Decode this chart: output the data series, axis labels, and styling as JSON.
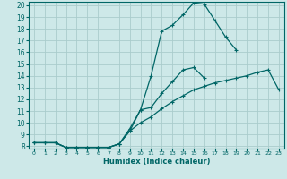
{
  "xlabel": "Humidex (Indice chaleur)",
  "background_color": "#cde8e8",
  "grid_color": "#aacccc",
  "line_color": "#006666",
  "xlim": [
    -0.5,
    23.5
  ],
  "ylim": [
    7.8,
    20.3
  ],
  "xticks": [
    0,
    1,
    2,
    3,
    4,
    5,
    6,
    7,
    8,
    9,
    10,
    11,
    12,
    13,
    14,
    15,
    16,
    17,
    18,
    19,
    20,
    21,
    22,
    23
  ],
  "yticks": [
    8,
    9,
    10,
    11,
    12,
    13,
    14,
    15,
    16,
    17,
    18,
    19,
    20
  ],
  "line1_y": [
    8.3,
    8.3,
    8.3,
    7.9,
    7.9,
    7.9,
    7.9,
    7.9,
    8.2,
    9.3,
    11.1,
    14.0,
    17.8,
    18.3,
    19.2,
    20.2,
    20.1,
    18.7,
    17.3,
    16.2,
    null,
    null,
    null,
    null
  ],
  "line2_y": [
    8.3,
    8.3,
    8.3,
    7.9,
    7.9,
    7.9,
    7.9,
    7.9,
    8.2,
    9.5,
    11.1,
    11.3,
    12.5,
    13.5,
    14.5,
    14.7,
    13.8,
    null,
    null,
    null,
    null,
    null,
    null,
    null
  ],
  "line3_y": [
    8.3,
    8.3,
    8.3,
    7.9,
    7.9,
    7.9,
    7.9,
    7.9,
    8.2,
    9.3,
    10.0,
    10.5,
    11.2,
    11.8,
    12.3,
    12.8,
    13.1,
    13.4,
    13.6,
    13.8,
    14.0,
    14.3,
    14.5,
    12.8
  ]
}
